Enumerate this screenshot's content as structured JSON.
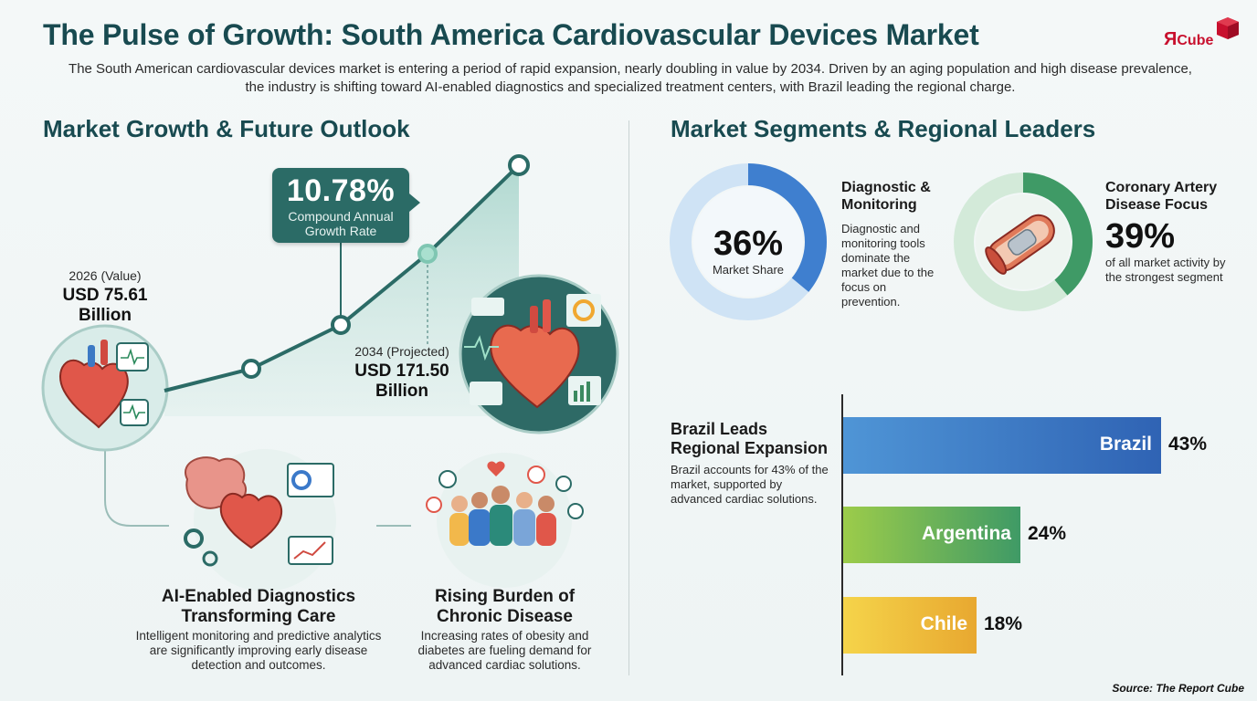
{
  "header": {
    "title": "The Pulse of Growth: South America Cardiovascular Devices Market",
    "subtitle": "The South American cardiovascular devices market is entering a period of rapid expansion, nearly doubling in value by 2034. Driven by an aging population and high disease prevalence, the industry is shifting toward AI-enabled diagnostics and specialized treatment centers, with Brazil leading the regional charge.",
    "logo_r": "Я",
    "logo_cube": "Cube"
  },
  "left": {
    "section_title": "Market Growth & Future Outlook",
    "cagr": {
      "value": "10.78%",
      "label": "Compound Annual Growth Rate"
    },
    "start": {
      "label": "2026 (Value)",
      "value": "USD 75.61 Billion"
    },
    "end": {
      "label": "2034 (Projected)",
      "value": "USD 171.50 Billion"
    },
    "features": [
      {
        "title": "AI-Enabled Diagnostics Transforming Care",
        "desc": "Intelligent monitoring and predictive analytics are significantly improving early disease detection and outcomes.",
        "icon": "ai-diagnostics-icon"
      },
      {
        "title": "Rising Burden of Chronic Disease",
        "desc": "Increasing rates of obesity and diabetes are fueling demand for advanced cardiac solutions.",
        "icon": "chronic-disease-icon"
      }
    ]
  },
  "right": {
    "section_title": "Market Segments & Regional Leaders",
    "segments": [
      {
        "value": "36%",
        "label": "Market Share",
        "title": "Diagnostic & Monitoring",
        "desc": "Diagnostic and monitoring tools dominate the market due to the focus on prevention."
      },
      {
        "value": "39%",
        "title": "Coronary Artery Disease Focus",
        "desc": "of all market activity by the strongest segment"
      }
    ],
    "regional": {
      "title": "Brazil Leads Regional Expansion",
      "desc": "Brazil accounts for 43% of the market, supported by advanced cardiac solutions."
    }
  },
  "chart_data": [
    {
      "type": "line",
      "x": [
        "2026",
        "2034"
      ],
      "values": [
        75.61,
        171.5
      ],
      "ylabel": "",
      "annotations": [
        "10.78% Compound Annual Growth Rate"
      ]
    },
    {
      "type": "pie",
      "categories": [
        "Diagnostic & Monitoring"
      ],
      "values": [
        36
      ]
    },
    {
      "type": "pie",
      "categories": [
        "Coronary Artery Disease Focus"
      ],
      "values": [
        39
      ]
    },
    {
      "type": "bar",
      "categories": [
        "Brazil",
        "Argentina",
        "Chile"
      ],
      "values": [
        43,
        24,
        18
      ],
      "labels": [
        "43%",
        "24%",
        "18%"
      ],
      "colors": [
        "#3b79c9",
        "#7cbf4a",
        "#f1c232"
      ]
    }
  ],
  "footer": {
    "source": "Source: The Report Cube"
  }
}
